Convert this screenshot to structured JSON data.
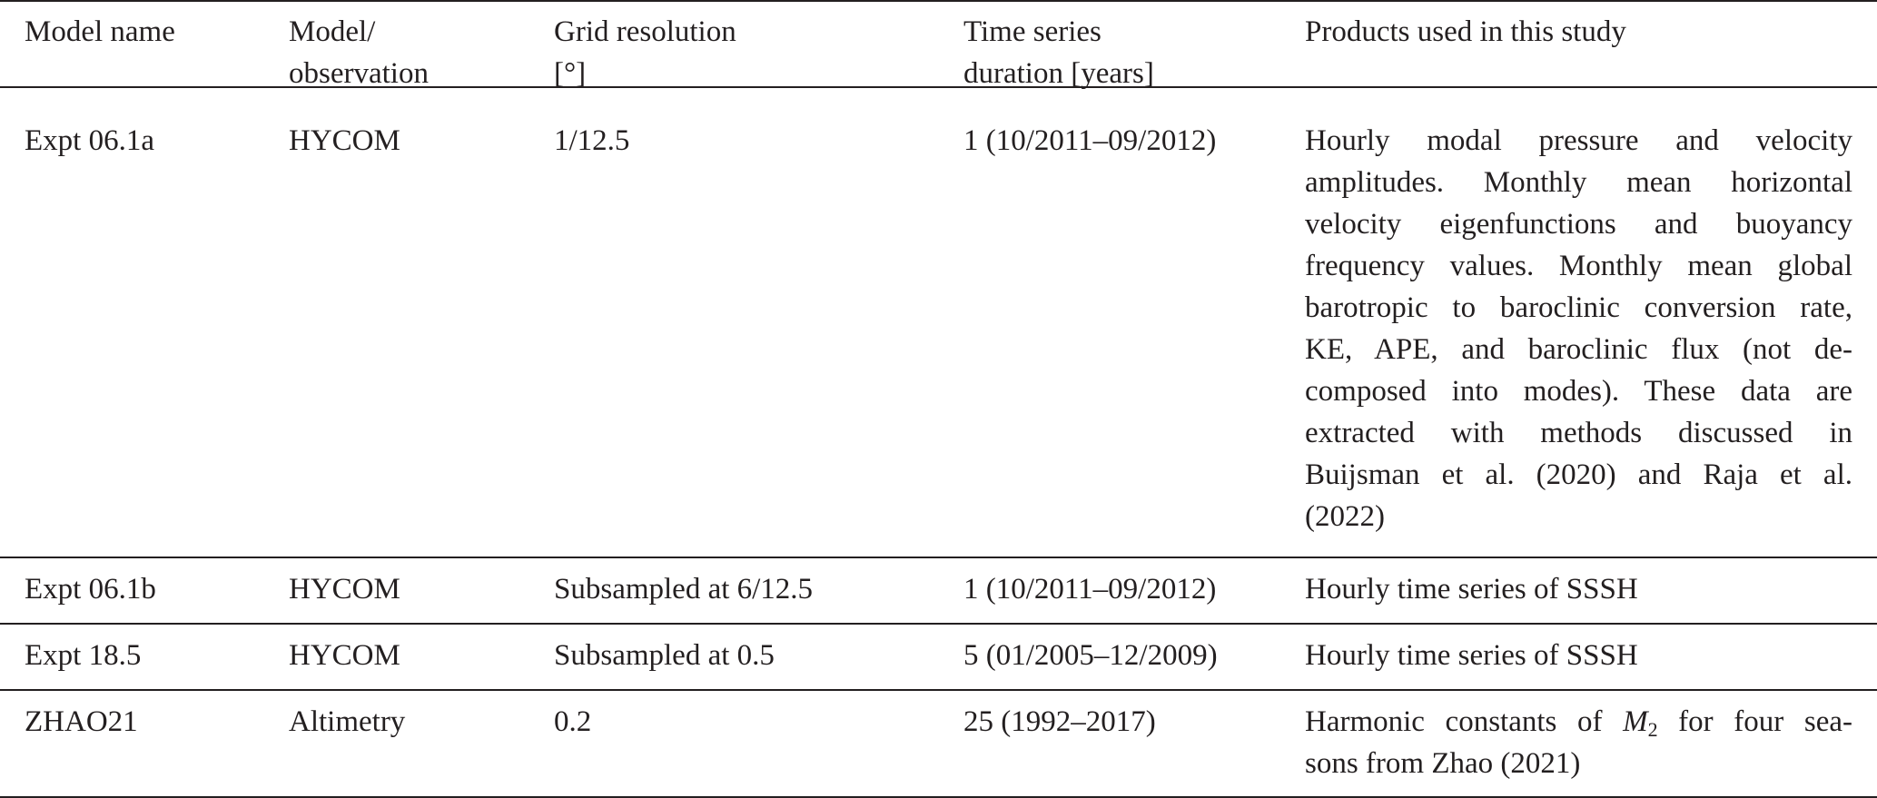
{
  "table": {
    "headers": [
      [
        "Model name"
      ],
      [
        "Model/",
        "observation"
      ],
      [
        "Grid resolution",
        "[°]"
      ],
      [
        "Time series",
        "duration [years]"
      ],
      [
        "Products used in this study"
      ]
    ],
    "rows": [
      {
        "model_name": "Expt 06.1a",
        "type": "HYCOM",
        "grid": "1/12.5",
        "duration": "1 (10/2011–09/2012)",
        "products_lines": [
          "Hourly modal pressure and velocity",
          "amplitudes. Monthly mean horizontal",
          "velocity eigenfunctions and buoyancy",
          "frequency values. Monthly mean global",
          "barotropic to baroclinic conversion rate,",
          "KE, APE, and baroclinic flux (not de-",
          "composed into modes). These data are",
          "extracted with methods discussed in",
          "Buijsman et al. (2020) and Raja et al.",
          "(2022)"
        ]
      },
      {
        "model_name": "Expt 06.1b",
        "type": "HYCOM",
        "grid": "Subsampled at 6/12.5",
        "duration": "1 (10/2011–09/2012)",
        "products": "Hourly time series of SSSH"
      },
      {
        "model_name": "Expt 18.5",
        "type": "HYCOM",
        "grid": "Subsampled at 0.5",
        "duration": "5 (01/2005–12/2009)",
        "products": "Hourly time series of SSSH"
      },
      {
        "model_name": "ZHAO21",
        "type": "Altimetry",
        "grid": "0.2",
        "duration": "25 (1992–2017)",
        "products_line1_pre": "Harmonic constants of ",
        "products_symbol": "M",
        "products_symbol_sub": "2",
        "products_line1_post": " for four sea-",
        "products_line2": "sons from Zhao (2021)"
      }
    ]
  }
}
